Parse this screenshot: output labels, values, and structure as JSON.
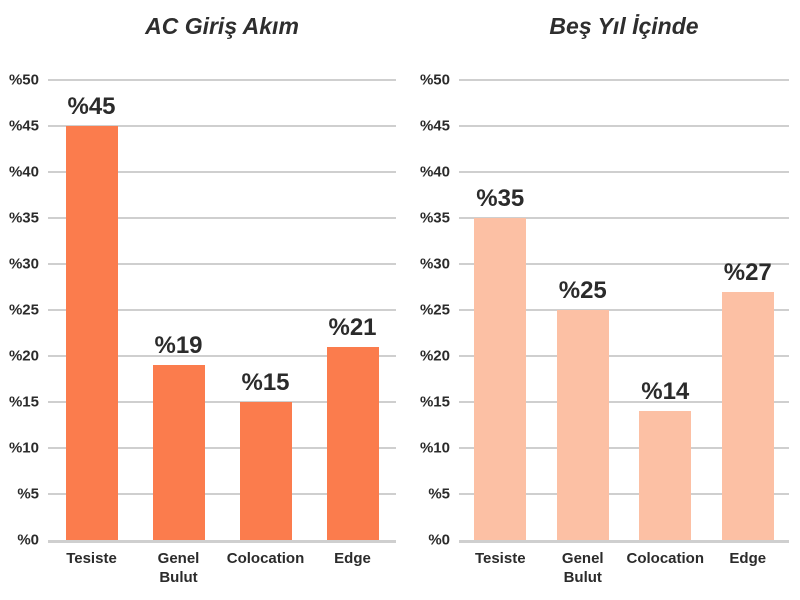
{
  "chart_data": [
    {
      "type": "bar",
      "title": "AC Giriş Akım",
      "categories": [
        "Tesiste",
        "Genel\nBulut",
        "Colocation",
        "Edge"
      ],
      "values": [
        45,
        19,
        15,
        21
      ],
      "value_labels": [
        "%45",
        "%19",
        "%15",
        "%21"
      ],
      "ytick_labels": [
        "%0",
        "%5",
        "%10",
        "%15",
        "%20",
        "%25",
        "%30",
        "%35",
        "%40",
        "%45",
        "%50"
      ],
      "ytick_step": 5,
      "ylim": [
        0,
        50
      ],
      "grid": true,
      "legend": "none",
      "bar_color": "#fb7c4d",
      "gridline_color": "#cfcfcf",
      "text_color": "#2b2b2b"
    },
    {
      "type": "bar",
      "title": "Beş Yıl İçinde",
      "categories": [
        "Tesiste",
        "Genel\nBulut",
        "Colocation",
        "Edge"
      ],
      "values": [
        35,
        25,
        14,
        27
      ],
      "value_labels": [
        "%35",
        "%25",
        "%14",
        "%27"
      ],
      "ytick_labels": [
        "%0",
        "%5",
        "%10",
        "%15",
        "%20",
        "%25",
        "%30",
        "%35",
        "%40",
        "%45",
        "%50"
      ],
      "ytick_step": 5,
      "ylim": [
        0,
        50
      ],
      "grid": true,
      "legend": "none",
      "bar_color": "#fcc0a4",
      "gridline_color": "#cfcfcf",
      "text_color": "#2b2b2b"
    }
  ]
}
